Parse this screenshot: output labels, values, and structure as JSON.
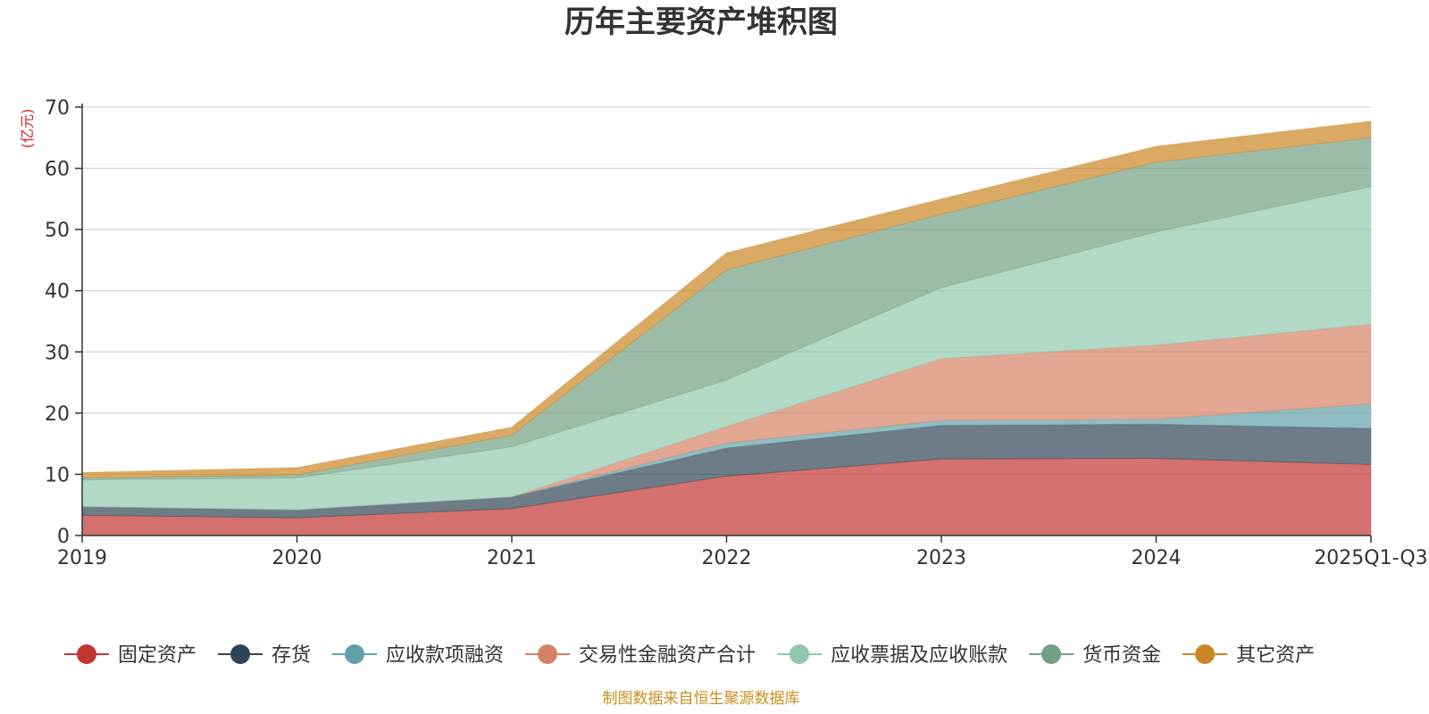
{
  "chart_data": {
    "type": "area",
    "stacked": true,
    "title": "历年主要资产堆积图",
    "unit_label": "(亿元)",
    "categories": [
      "2019",
      "2020",
      "2021",
      "2022",
      "2023",
      "2024",
      "2025Q1-Q3"
    ],
    "ylim": [
      0,
      70
    ],
    "yticks": [
      0,
      10,
      20,
      30,
      40,
      50,
      60,
      70
    ],
    "grid": true,
    "legend_position": "bottom",
    "series": [
      {
        "name": "固定资产",
        "color": "#c23531",
        "values": [
          3.3,
          2.9,
          4.4,
          9.7,
          12.5,
          12.6,
          11.6
        ]
      },
      {
        "name": "存货",
        "color": "#2f4554",
        "values": [
          1.4,
          1.3,
          1.9,
          4.6,
          5.5,
          5.6,
          5.9
        ]
      },
      {
        "name": "应收款项融资",
        "color": "#61a0a8",
        "values": [
          0.0,
          0.0,
          0.0,
          0.8,
          0.8,
          0.8,
          4.0
        ]
      },
      {
        "name": "交易性金融资产合计",
        "color": "#d48265",
        "values": [
          0.0,
          0.0,
          0.0,
          2.7,
          10.1,
          12.1,
          13.0
        ]
      },
      {
        "name": "应收票据及应收账款",
        "color": "#91c7ae",
        "values": [
          4.4,
          5.2,
          8.2,
          7.6,
          11.6,
          18.5,
          22.5
        ]
      },
      {
        "name": "货币资金",
        "color": "#749f83",
        "values": [
          0.3,
          0.5,
          1.9,
          18.0,
          12.0,
          11.4,
          8.0
        ]
      },
      {
        "name": "其它资产",
        "color": "#ca8622",
        "values": [
          0.9,
          1.2,
          1.3,
          2.8,
          2.5,
          2.6,
          2.7
        ]
      }
    ]
  },
  "source_note": "制图数据来自恒生聚源数据库"
}
